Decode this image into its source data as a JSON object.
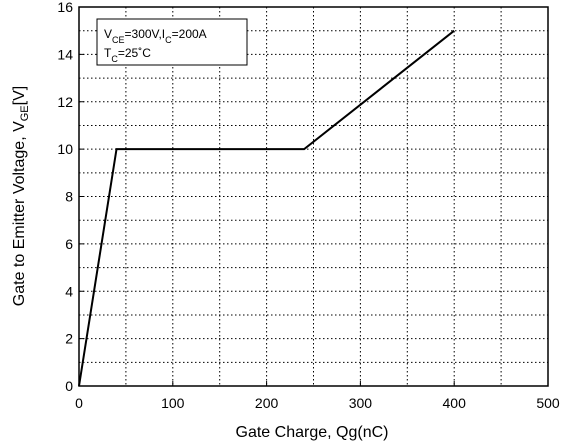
{
  "chart_data": {
    "type": "line",
    "xlabel": "Gate Charge, Qg(nC)",
    "ylabel_main": "Gate to Emitter Voltage, V",
    "ylabel_sub": "GE",
    "ylabel_unit": "[V]",
    "xlim": [
      0,
      500
    ],
    "ylim": [
      0,
      16
    ],
    "x_ticks": [
      0,
      100,
      200,
      300,
      400,
      500
    ],
    "y_ticks": [
      0,
      2,
      4,
      6,
      8,
      10,
      12,
      14,
      16
    ],
    "grid": "dotted",
    "legend": "none",
    "series": [
      {
        "x": [
          0,
          40,
          240,
          400
        ],
        "y": [
          0,
          10,
          10,
          15
        ]
      }
    ],
    "annotation": {
      "line1": [
        {
          "t": "V",
          "sub": false
        },
        {
          "t": "CE",
          "sub": true
        },
        {
          "t": "=300V,I",
          "sub": false
        },
        {
          "t": "C",
          "sub": true
        },
        {
          "t": "=200A",
          "sub": false
        }
      ],
      "line2": [
        {
          "t": "T",
          "sub": false
        },
        {
          "t": "C",
          "sub": true
        },
        {
          "t": "=25",
          "sub": false
        },
        {
          "t": "˚C",
          "sub": false
        }
      ]
    },
    "colors": {
      "line": "#000000",
      "grid": "#000000",
      "background": "#ffffff"
    }
  }
}
